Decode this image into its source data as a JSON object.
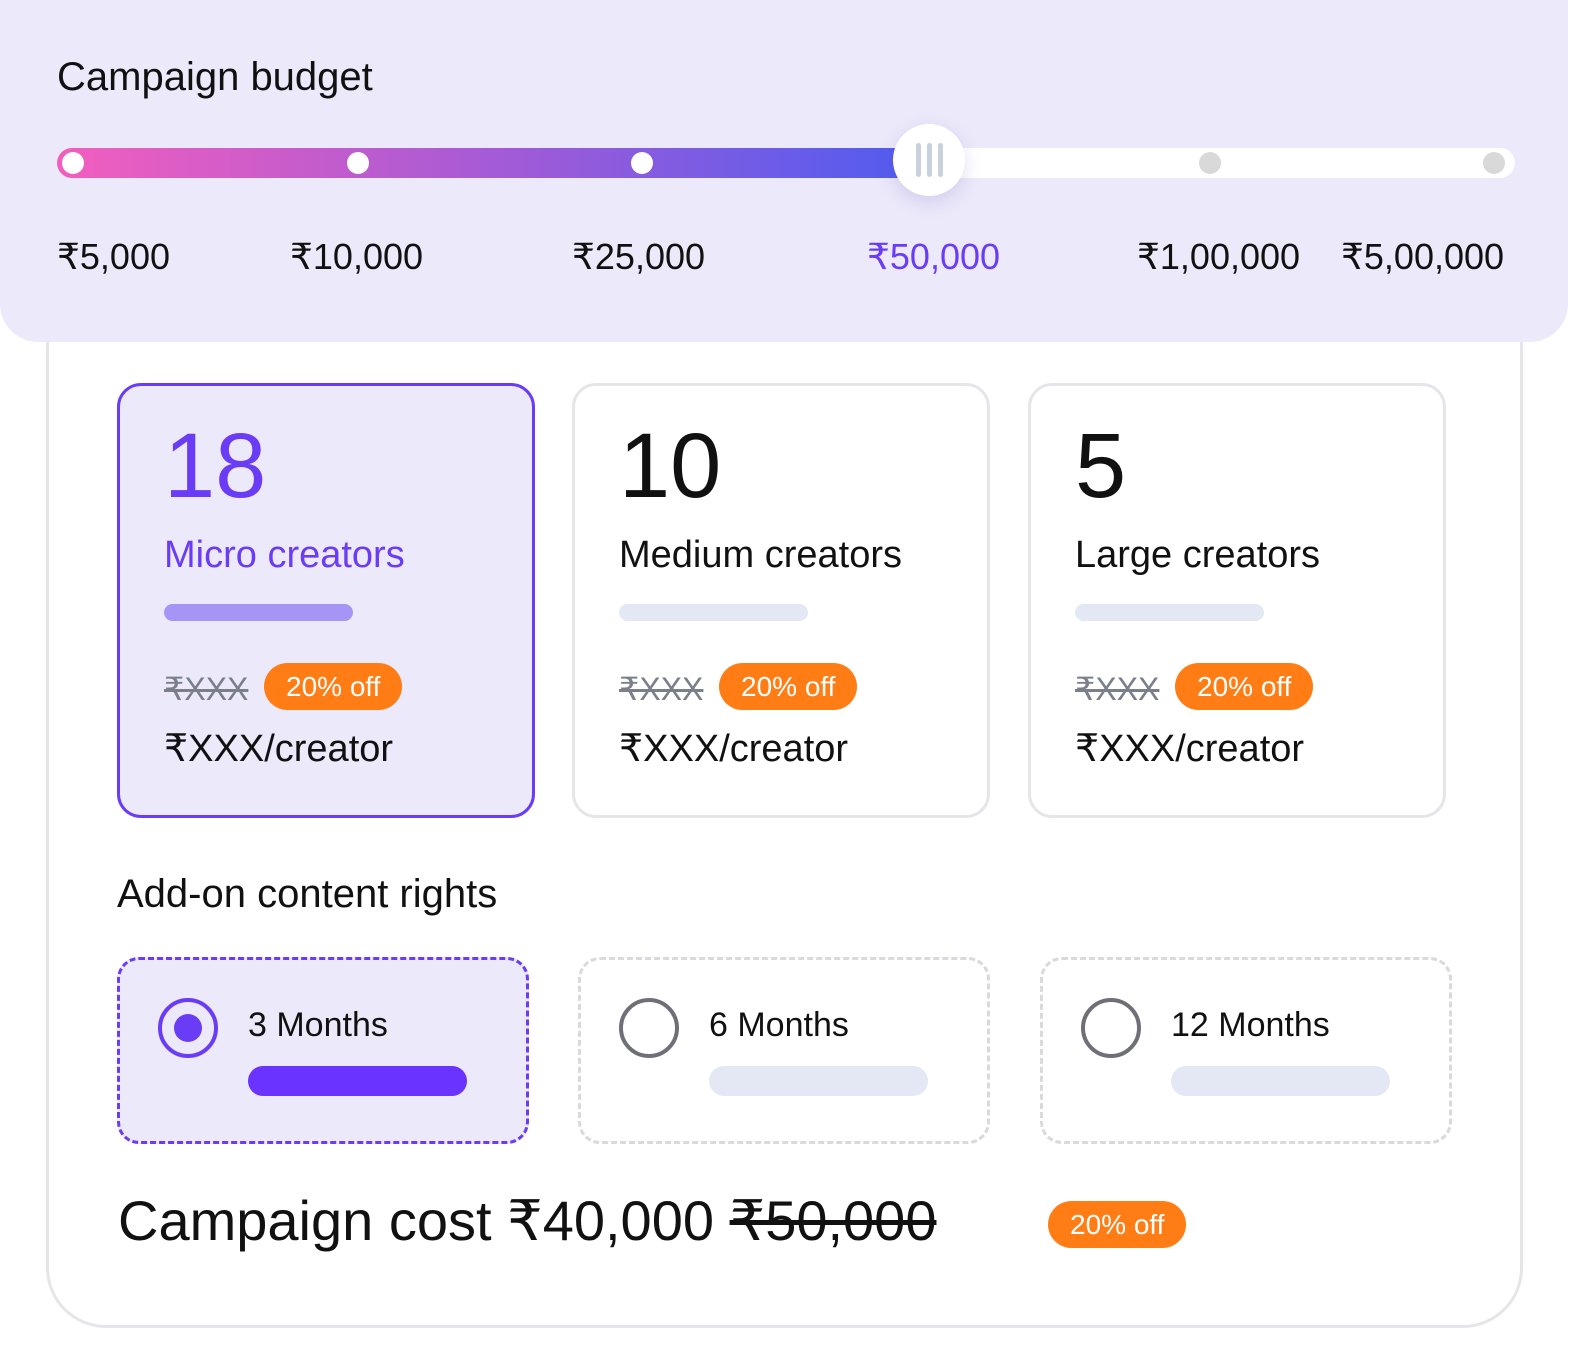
{
  "budget": {
    "title": "Campaign budget",
    "stops": [
      "₹5,000",
      "₹10,000",
      "₹25,000",
      "₹50,000",
      "₹1,00,000",
      "₹5,00,000"
    ],
    "selected_index": 3,
    "selected": "₹50,000"
  },
  "tiers": [
    {
      "count": "18",
      "label": "Micro creators",
      "old_price": "₹XXX",
      "discount": "20% off",
      "price": "₹XXX/creator",
      "selected": true
    },
    {
      "count": "10",
      "label": "Medium creators",
      "old_price": "₹XXX",
      "discount": "20% off",
      "price": "₹XXX/creator",
      "selected": false
    },
    {
      "count": "5",
      "label": "Large creators",
      "old_price": "₹XXX",
      "discount": "20% off",
      "price": "₹XXX/creator",
      "selected": false
    }
  ],
  "addon": {
    "title": "Add-on content rights",
    "options": [
      {
        "label": "3 Months",
        "selected": true
      },
      {
        "label": "6 Months",
        "selected": false
      },
      {
        "label": "12 Months",
        "selected": false
      }
    ]
  },
  "cost": {
    "label": "Campaign cost",
    "price": "₹40,000",
    "old_price": "₹50,000",
    "discount": "20% off"
  },
  "colors": {
    "accent": "#6B3CF5",
    "badge": "#FF7D14",
    "panel": "#ECE9FA"
  }
}
